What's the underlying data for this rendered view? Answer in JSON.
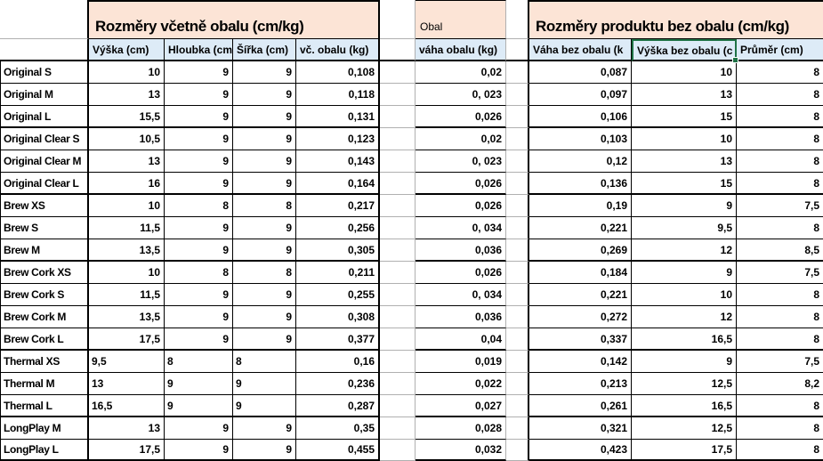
{
  "sheet": {
    "sections": {
      "left_header": "Rozměry včetně obalu (cm/kg)",
      "middle_header": "Obal",
      "right_header": "Rozměry produktu bez obalu (cm/kg)"
    },
    "columns": {
      "vyska": "Výška (cm)",
      "hloubka": "Hloubka (cm",
      "sirka": "Šířka (cm)",
      "vc_obalu": "vč. obalu (kg)",
      "vaha_obalu": "váha obalu (kg)",
      "vaha_bez_obalu": "Váha bez obalu (k",
      "vyska_bez_obalu": "Výška bez obalu (c",
      "prumer": "Průměr (cm)"
    },
    "selection": {
      "selected_header_column": "vyska_bez_obalu"
    },
    "rows": [
      {
        "name": "Original S",
        "vyska": "10",
        "hloubka": "9",
        "sirka": "9",
        "vc_obalu": "0,108",
        "vaha_obalu": "0,02",
        "vaha_bez_obalu": "0,087",
        "vyska_bez_obalu": "10",
        "prumer": "8"
      },
      {
        "name": "Original M",
        "vyska": "13",
        "hloubka": "9",
        "sirka": "9",
        "vc_obalu": "0,118",
        "vaha_obalu": "0, 023",
        "vaha_bez_obalu": "0,097",
        "vyska_bez_obalu": "13",
        "prumer": "8"
      },
      {
        "name": "Original L",
        "vyska": "15,5",
        "hloubka": "9",
        "sirka": "9",
        "vc_obalu": "0,131",
        "vaha_obalu": "0,026",
        "vaha_bez_obalu": "0,106",
        "vyska_bez_obalu": "15",
        "prumer": "8",
        "group_end": true
      },
      {
        "name": "Original Clear S",
        "vyska": "10,5",
        "hloubka": "9",
        "sirka": "9",
        "vc_obalu": "0,123",
        "vaha_obalu": "0,02",
        "vaha_bez_obalu": "0,103",
        "vyska_bez_obalu": "10",
        "prumer": "8"
      },
      {
        "name": "Original Clear M",
        "vyska": "13",
        "hloubka": "9",
        "sirka": "9",
        "vc_obalu": "0,143",
        "vaha_obalu": "0, 023",
        "vaha_bez_obalu": "0,12",
        "vyska_bez_obalu": "13",
        "prumer": "8"
      },
      {
        "name": "Original Clear L",
        "vyska": "16",
        "hloubka": "9",
        "sirka": "9",
        "vc_obalu": "0,164",
        "vaha_obalu": "0,026",
        "vaha_bez_obalu": "0,136",
        "vyska_bez_obalu": "15",
        "prumer": "8",
        "group_end": true
      },
      {
        "name": "Brew XS",
        "vyska": "10",
        "hloubka": "8",
        "sirka": "8",
        "vc_obalu": "0,217",
        "vaha_obalu": "0,026",
        "vaha_bez_obalu": "0,19",
        "vyska_bez_obalu": "9",
        "prumer": "7,5"
      },
      {
        "name": "Brew S",
        "vyska": "11,5",
        "hloubka": "9",
        "sirka": "9",
        "vc_obalu": "0,256",
        "vaha_obalu": "0, 034",
        "vaha_bez_obalu": "0,221",
        "vyska_bez_obalu": "9,5",
        "prumer": "8"
      },
      {
        "name": "Brew M",
        "vyska": "13,5",
        "hloubka": "9",
        "sirka": "9",
        "vc_obalu": "0,305",
        "vaha_obalu": "0,036",
        "vaha_bez_obalu": "0,269",
        "vyska_bez_obalu": "12",
        "prumer": "8,5",
        "group_end": true
      },
      {
        "name": "Brew Cork XS",
        "vyska": "10",
        "hloubka": "8",
        "sirka": "8",
        "vc_obalu": "0,211",
        "vaha_obalu": "0,026",
        "vaha_bez_obalu": "0,184",
        "vyska_bez_obalu": "9",
        "prumer": "7,5"
      },
      {
        "name": "Brew Cork S",
        "vyska": "11,5",
        "hloubka": "9",
        "sirka": "9",
        "vc_obalu": "0,255",
        "vaha_obalu": "0, 034",
        "vaha_bez_obalu": "0,221",
        "vyska_bez_obalu": "10",
        "prumer": "8"
      },
      {
        "name": "Brew Cork M",
        "vyska": "13,5",
        "hloubka": "9",
        "sirka": "9",
        "vc_obalu": "0,308",
        "vaha_obalu": "0,036",
        "vaha_bez_obalu": "0,272",
        "vyska_bez_obalu": "12",
        "prumer": "8"
      },
      {
        "name": "Brew Cork L",
        "vyska": "17,5",
        "hloubka": "9",
        "sirka": "9",
        "vc_obalu": "0,377",
        "vaha_obalu": "0,04",
        "vaha_bez_obalu": "0,337",
        "vyska_bez_obalu": "16,5",
        "prumer": "8",
        "group_end": true
      },
      {
        "name": "Thermal XS",
        "vyska": "9,5",
        "hloubka": "8",
        "sirka": "8",
        "vc_obalu": "0,16",
        "vaha_obalu": "0,019",
        "vaha_bez_obalu": "0,142",
        "vyska_bez_obalu": "9",
        "prumer": "7,5",
        "dims_left": true
      },
      {
        "name": "Thermal M",
        "vyska": "13",
        "hloubka": "9",
        "sirka": "9",
        "vc_obalu": "0,236",
        "vaha_obalu": "0,022",
        "vaha_bez_obalu": "0,213",
        "vyska_bez_obalu": "12,5",
        "prumer": "8,2",
        "dims_left": true
      },
      {
        "name": "Thermal L",
        "vyska": "16,5",
        "hloubka": "9",
        "sirka": "9",
        "vc_obalu": "0,287",
        "vaha_obalu": "0,027",
        "vaha_bez_obalu": "0,261",
        "vyska_bez_obalu": "16,5",
        "prumer": "8",
        "dims_left": true,
        "group_end": true
      },
      {
        "name": "LongPlay M",
        "vyska": "13",
        "hloubka": "9",
        "sirka": "9",
        "vc_obalu": "0,35",
        "vaha_obalu": "0,028",
        "vaha_bez_obalu": "0,321",
        "vyska_bez_obalu": "12,5",
        "prumer": "8"
      },
      {
        "name": "LongPlay L",
        "vyska": "17,5",
        "hloubka": "9",
        "sirka": "9",
        "vc_obalu": "0,455",
        "vaha_obalu": "0,032",
        "vaha_bez_obalu": "0,423",
        "vyska_bez_obalu": "17,5",
        "prumer": "8",
        "group_end": true
      }
    ],
    "colors": {
      "section_header_fill": "#fce4d6",
      "column_header_fill": "#ddebf7",
      "selection_border": "#1f7245",
      "gridline": "#b0b0b0",
      "cell_border": "#000000"
    }
  }
}
